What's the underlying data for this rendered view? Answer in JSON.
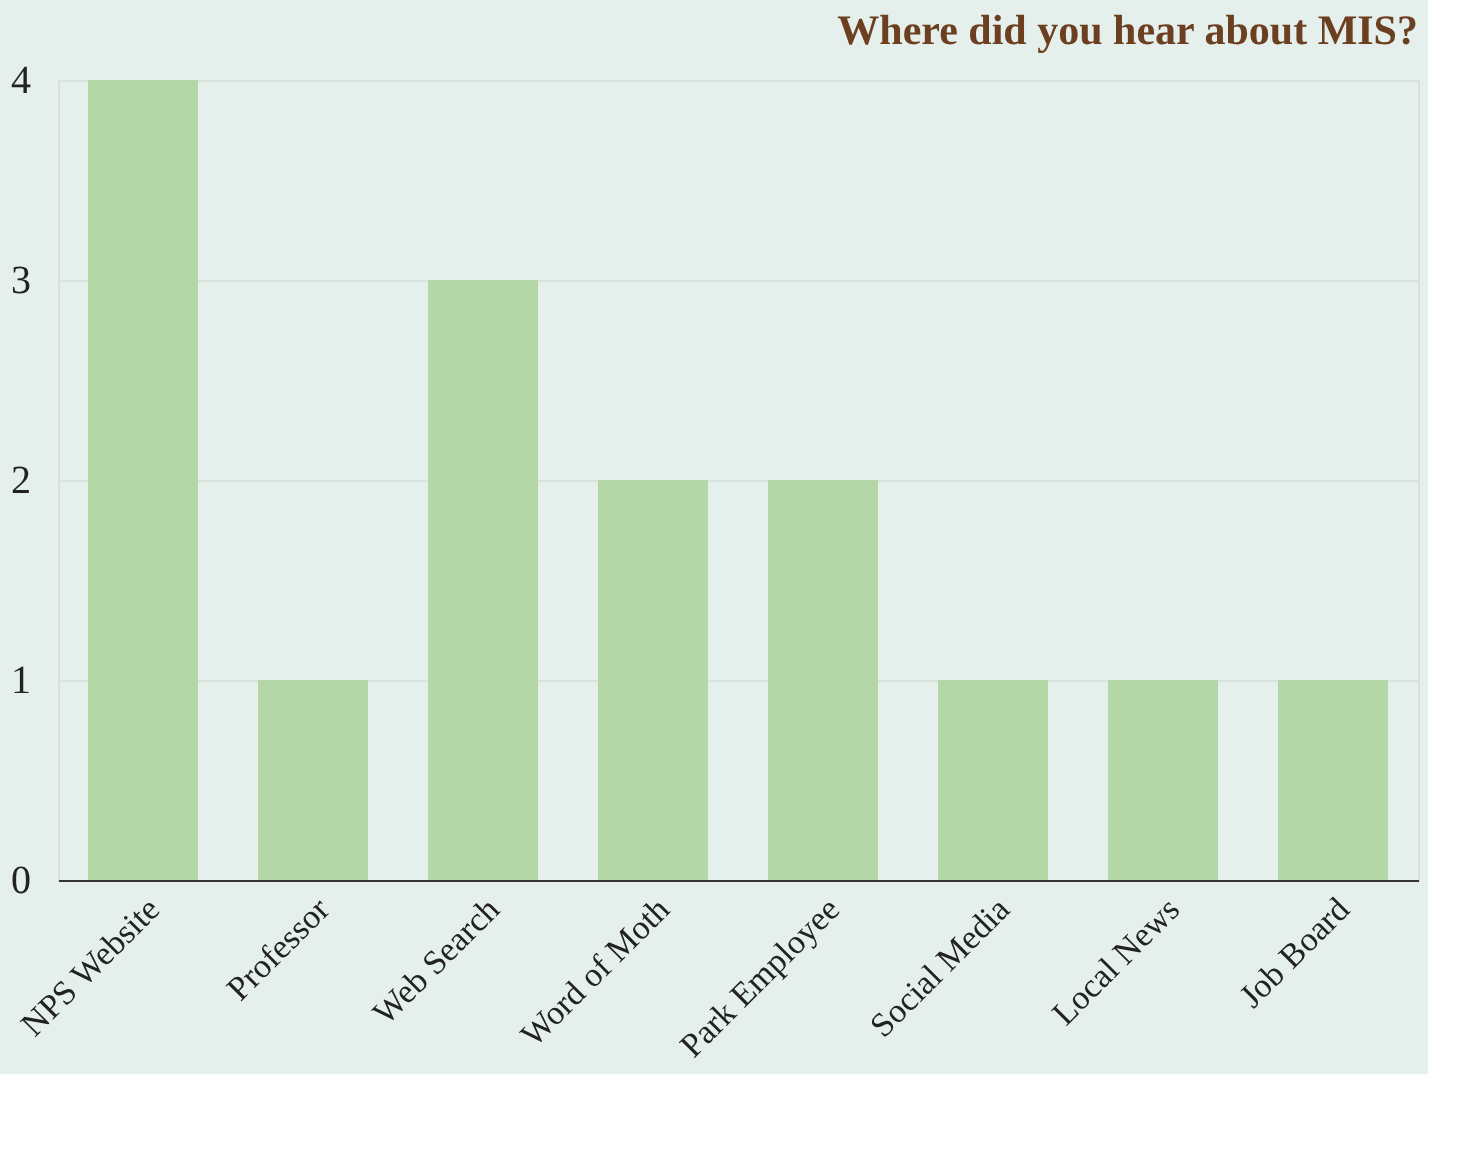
{
  "chart_data": {
    "type": "bar",
    "title": "Where did you hear about MIS?",
    "categories": [
      "NPS Website",
      "Professor",
      "Web Search",
      "Word of Moth",
      "Park Employee",
      "Social Media",
      "Local News",
      "Job Board"
    ],
    "values": [
      4,
      1,
      3,
      2,
      2,
      1,
      1,
      1
    ],
    "color": "#b3d7a7",
    "ylim": [
      0,
      4
    ],
    "yticks": [
      0,
      1,
      2,
      3,
      4
    ],
    "grid": "y"
  }
}
